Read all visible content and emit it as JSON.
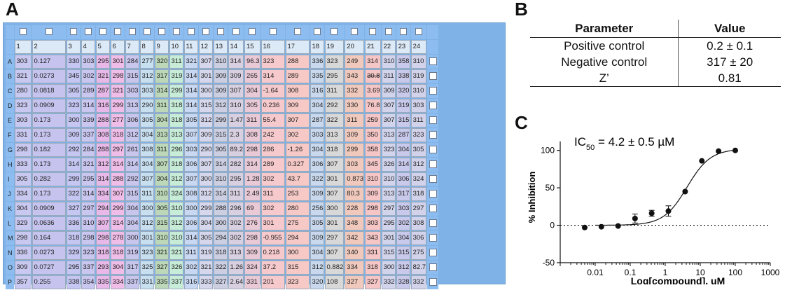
{
  "labels": {
    "a": "A",
    "b": "B",
    "c": "C"
  },
  "plate": {
    "columns": [
      "1",
      "2",
      "3",
      "4",
      "5",
      "6",
      "7",
      "8",
      "9",
      "10",
      "11",
      "12",
      "13",
      "14",
      "15",
      "16",
      "17",
      "18",
      "19",
      "20",
      "21",
      "22",
      "23",
      "24"
    ],
    "col_colors": [
      "#c9c8f0",
      "#c6c4ee",
      "#c5c6f2",
      "#c9c6f0",
      "#e7b8e8",
      "#f0bde8",
      "#c9c6ee",
      "#c8dff0",
      "#bcd8b8",
      "#c7ecd8",
      "#c9d8f2",
      "#d6d7ec",
      "#cccfe2",
      "#d8d0e0",
      "#e9c9d6",
      "#f6c9cc",
      "#f6c9c6",
      "#c9d8ec",
      "#d8d8d8",
      "#f0c9bc",
      "#f6c6c6",
      "#d2d4ec",
      "#c9c9ec",
      "#d2d2ea"
    ],
    "rows": [
      {
        "label": "A",
        "cells": [
          "303",
          "0.127",
          "330",
          "303",
          "295",
          "301",
          "284",
          "277",
          "320",
          "311",
          "321",
          "307",
          "310",
          "314",
          "96.3",
          "323",
          "288",
          "336",
          "323",
          "249",
          "314",
          "310",
          "358",
          "310"
        ]
      },
      {
        "label": "B",
        "cells": [
          "321",
          "0.0273",
          "345",
          "302",
          "321",
          "298",
          "315",
          "312",
          "317",
          "319",
          "314",
          "301",
          "309",
          "309",
          "265",
          "314",
          "289",
          "335",
          "295",
          "343",
          "30.8",
          "311",
          "338",
          "319"
        ]
      },
      {
        "label": "C",
        "cells": [
          "280",
          "0.0818",
          "305",
          "289",
          "287",
          "321",
          "303",
          "303",
          "314",
          "299",
          "314",
          "300",
          "309",
          "307",
          "304",
          "-1.64",
          "308",
          "316",
          "311",
          "332",
          "3.69",
          "309",
          "320",
          "310"
        ]
      },
      {
        "label": "D",
        "cells": [
          "323",
          "0.0909",
          "323",
          "314",
          "316",
          "299",
          "313",
          "290",
          "311",
          "318",
          "314",
          "315",
          "312",
          "310",
          "305",
          "0.236",
          "309",
          "304",
          "292",
          "330",
          "76.8",
          "307",
          "319",
          "303"
        ]
      },
      {
        "label": "E",
        "cells": [
          "303",
          "0.173",
          "300",
          "339",
          "288",
          "277",
          "306",
          "305",
          "304",
          "318",
          "305",
          "312",
          "299",
          "1.47",
          "311",
          "55.4",
          "307",
          "287",
          "322",
          "311",
          "259",
          "307",
          "315",
          "311"
        ]
      },
      {
        "label": "F",
        "cells": [
          "331",
          "0.173",
          "309",
          "337",
          "308",
          "318",
          "312",
          "304",
          "313",
          "313",
          "307",
          "309",
          "315",
          "2.3",
          "308",
          "242",
          "302",
          "303",
          "313",
          "309",
          "350",
          "313",
          "287",
          "323"
        ]
      },
      {
        "label": "G",
        "cells": [
          "298",
          "0.182",
          "292",
          "284",
          "288",
          "297",
          "261",
          "308",
          "311",
          "296",
          "303",
          "290",
          "305",
          "89.2",
          "298",
          "286",
          "-1.26",
          "304",
          "318",
          "299",
          "358",
          "323",
          "304",
          "305"
        ]
      },
      {
        "label": "H",
        "cells": [
          "333",
          "0.173",
          "314",
          "321",
          "312",
          "314",
          "314",
          "304",
          "307",
          "318",
          "306",
          "307",
          "314",
          "282",
          "314",
          "289",
          "0.327",
          "306",
          "307",
          "303",
          "345",
          "326",
          "314",
          "312"
        ]
      },
      {
        "label": "I",
        "cells": [
          "305",
          "0.282",
          "299",
          "295",
          "314",
          "288",
          "292",
          "307",
          "304",
          "312",
          "307",
          "300",
          "310",
          "295",
          "1.28",
          "302",
          "43.7",
          "322",
          "301",
          "0.873",
          "310",
          "310",
          "306",
          "324"
        ]
      },
      {
        "label": "J",
        "cells": [
          "334",
          "0.173",
          "322",
          "314",
          "334",
          "307",
          "315",
          "311",
          "310",
          "324",
          "308",
          "312",
          "314",
          "311",
          "2.49",
          "311",
          "253",
          "309",
          "307",
          "80.3",
          "309",
          "313",
          "317",
          "318"
        ]
      },
      {
        "label": "K",
        "cells": [
          "304",
          "0.0909",
          "327",
          "297",
          "294",
          "299",
          "304",
          "300",
          "305",
          "310",
          "300",
          "299",
          "288",
          "296",
          "69",
          "302",
          "280",
          "256",
          "300",
          "228",
          "298",
          "297",
          "303",
          "297"
        ]
      },
      {
        "label": "L",
        "cells": [
          "329",
          "0.0636",
          "336",
          "310",
          "307",
          "314",
          "304",
          "312",
          "315",
          "312",
          "306",
          "304",
          "300",
          "302",
          "276",
          "301",
          "275",
          "305",
          "301",
          "348",
          "303",
          "295",
          "302",
          "308"
        ]
      },
      {
        "label": "M",
        "cells": [
          "298",
          "0.164",
          "318",
          "298",
          "298",
          "278",
          "300",
          "301",
          "310",
          "310",
          "314",
          "305",
          "294",
          "302",
          "298",
          "-0.955",
          "294",
          "309",
          "297",
          "342",
          "343",
          "301",
          "304",
          "306"
        ]
      },
      {
        "label": "N",
        "cells": [
          "336",
          "0.0273",
          "329",
          "323",
          "318",
          "318",
          "319",
          "323",
          "321",
          "321",
          "311",
          "319",
          "318",
          "313",
          "309",
          "0.218",
          "300",
          "304",
          "307",
          "340",
          "331",
          "315",
          "315",
          "275"
        ]
      },
      {
        "label": "O",
        "cells": [
          "309",
          "0.0727",
          "295",
          "337",
          "293",
          "304",
          "317",
          "325",
          "327",
          "326",
          "302",
          "321",
          "322",
          "1.26",
          "324",
          "37.2",
          "315",
          "312",
          "0.882",
          "334",
          "318",
          "300",
          "312",
          "82.7"
        ]
      },
      {
        "label": "P",
        "cells": [
          "357",
          "0.255",
          "338",
          "354",
          "335",
          "334",
          "337",
          "331",
          "335",
          "337",
          "316",
          "333",
          "327",
          "2.64",
          "331",
          "201",
          "323",
          "320",
          "108",
          "327",
          "327",
          "332",
          "328",
          "332"
        ]
      }
    ]
  },
  "table_b": {
    "header": [
      "Parameter",
      "Value"
    ],
    "rows": [
      [
        "Positive control",
        "0.2 ± 0.1"
      ],
      [
        "Negative control",
        "317 ± 20"
      ],
      [
        "Z’",
        "0.81"
      ]
    ]
  },
  "chart_data": {
    "type": "scatter",
    "annotation": "IC50 = 4.2 ± 0.5 µM",
    "xlabel": "Log[compound], uM",
    "ylabel": "% Inhibition",
    "x_scale": "log",
    "xlim": [
      0.001,
      1000
    ],
    "ylim": [
      -50,
      125
    ],
    "x_ticks": [
      "0.01",
      "0.1",
      "1",
      "10",
      "100",
      "1000"
    ],
    "y_ticks": [
      "-50",
      "0",
      "50",
      "100"
    ],
    "baseline": 0,
    "points": [
      {
        "x": 0.005,
        "y": -3,
        "err": 0
      },
      {
        "x": 0.015,
        "y": -2,
        "err": 0
      },
      {
        "x": 0.045,
        "y": -1,
        "err": 0
      },
      {
        "x": 0.137,
        "y": 9,
        "err": 6
      },
      {
        "x": 0.41,
        "y": 16,
        "err": 4
      },
      {
        "x": 1.23,
        "y": 19,
        "err": 7
      },
      {
        "x": 3.7,
        "y": 45,
        "err": 0
      },
      {
        "x": 11.1,
        "y": 86,
        "err": 0
      },
      {
        "x": 33.3,
        "y": 99,
        "err": 0
      },
      {
        "x": 100,
        "y": 100,
        "err": 0
      }
    ],
    "fit": {
      "bottom": 0,
      "top": 102,
      "ic50": 4.2,
      "hill": 1.3
    }
  }
}
